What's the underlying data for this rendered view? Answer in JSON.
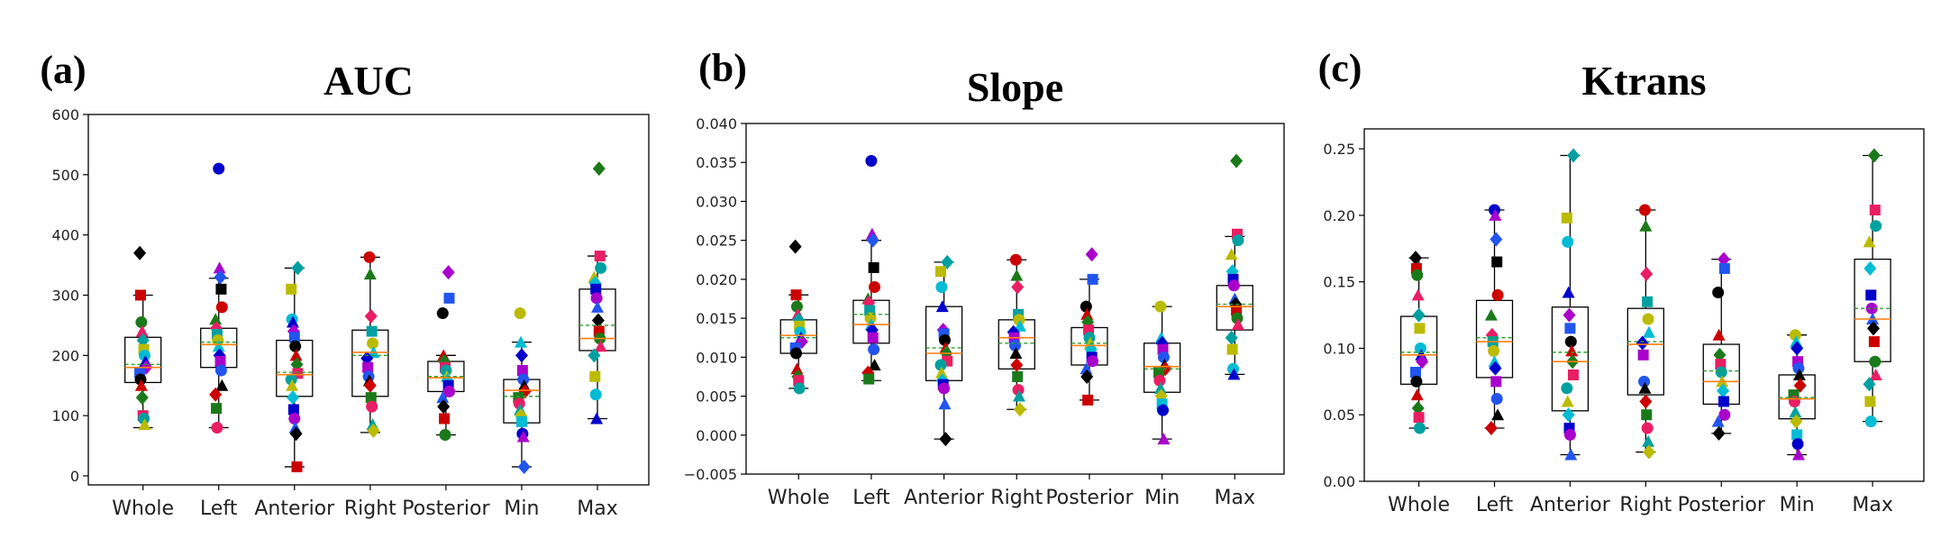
{
  "chart_data": [
    {
      "type": "box",
      "panel": "(a)",
      "title": "AUC",
      "xlabel": "",
      "ylabel": "",
      "categories": [
        "Whole",
        "Left",
        "Anterior",
        "Right",
        "Posterior",
        "Min",
        "Max"
      ],
      "ylim": [
        -15,
        600
      ],
      "yticks": [
        0,
        100,
        200,
        300,
        400,
        500,
        600
      ],
      "ytick_labels": [
        "0",
        "100",
        "200",
        "300",
        "400",
        "500",
        "600"
      ],
      "boxes": [
        {
          "whisker_low": 80,
          "q1": 155,
          "median": 180,
          "mean": 185,
          "q3": 230,
          "whisker_high": 300
        },
        {
          "whisker_low": 80,
          "q1": 180,
          "median": 218,
          "mean": 222,
          "q3": 245,
          "whisker_high": 328
        },
        {
          "whisker_low": 15,
          "q1": 132,
          "median": 168,
          "mean": 172,
          "q3": 225,
          "whisker_high": 345
        },
        {
          "whisker_low": 72,
          "q1": 132,
          "median": 205,
          "mean": 200,
          "q3": 242,
          "whisker_high": 363
        },
        {
          "whisker_low": 68,
          "q1": 140,
          "median": 163,
          "mean": 165,
          "q3": 190,
          "whisker_high": 200
        },
        {
          "whisker_low": 15,
          "q1": 88,
          "median": 142,
          "mean": 132,
          "q3": 160,
          "whisker_high": 222
        },
        {
          "whisker_low": 95,
          "q1": 208,
          "median": 228,
          "mean": 250,
          "q3": 310,
          "whisker_high": 365
        }
      ],
      "points": [
        [
          370,
          300,
          255,
          240,
          225,
          210,
          200,
          190,
          180,
          172,
          160,
          150,
          130,
          100,
          95,
          85
        ],
        [
          510,
          345,
          330,
          310,
          280,
          260,
          245,
          235,
          225,
          215,
          200,
          190,
          175,
          150,
          135,
          112,
          80
        ],
        [
          345,
          310,
          260,
          255,
          240,
          230,
          215,
          200,
          185,
          170,
          160,
          150,
          130,
          110,
          95,
          80,
          70,
          15
        ],
        [
          363,
          335,
          265,
          240,
          220,
          205,
          195,
          180,
          165,
          158,
          150,
          130,
          115,
          85,
          75
        ],
        [
          338,
          295,
          270,
          200,
          190,
          180,
          175,
          165,
          158,
          150,
          140,
          130,
          115,
          95,
          68
        ],
        [
          270,
          222,
          200,
          175,
          160,
          150,
          140,
          130,
          120,
          110,
          100,
          90,
          70,
          65,
          15
        ],
        [
          510,
          365,
          345,
          330,
          320,
          310,
          295,
          280,
          258,
          240,
          228,
          215,
          200,
          165,
          135,
          95
        ]
      ]
    },
    {
      "type": "box",
      "panel": "(b)",
      "title": "Slope",
      "xlabel": "",
      "ylabel": "",
      "categories": [
        "Whole",
        "Left",
        "Anterior",
        "Right",
        "Posterior",
        "Min",
        "Max"
      ],
      "ylim": [
        -0.005,
        0.04
      ],
      "yticks": [
        -0.005,
        0.0,
        0.005,
        0.01,
        0.015,
        0.02,
        0.025,
        0.03,
        0.035,
        0.04
      ],
      "ytick_labels": [
        "−0.005",
        "0.000",
        "0.005",
        "0.010",
        "0.015",
        "0.020",
        "0.025",
        "0.030",
        "0.035",
        "0.040"
      ],
      "boxes": [
        {
          "whisker_low": 0.006,
          "q1": 0.0105,
          "median": 0.0128,
          "mean": 0.0125,
          "q3": 0.0148,
          "whisker_high": 0.018
        },
        {
          "whisker_low": 0.007,
          "q1": 0.0118,
          "median": 0.0142,
          "mean": 0.0155,
          "q3": 0.0173,
          "whisker_high": 0.025
        },
        {
          "whisker_low": -0.0005,
          "q1": 0.007,
          "median": 0.0105,
          "mean": 0.0112,
          "q3": 0.0165,
          "whisker_high": 0.0222
        },
        {
          "whisker_low": 0.0033,
          "q1": 0.0085,
          "median": 0.0125,
          "mean": 0.0118,
          "q3": 0.0148,
          "whisker_high": 0.0225
        },
        {
          "whisker_low": 0.0045,
          "q1": 0.009,
          "median": 0.0115,
          "mean": 0.0118,
          "q3": 0.0138,
          "whisker_high": 0.02
        },
        {
          "whisker_low": -0.0005,
          "q1": 0.0055,
          "median": 0.0088,
          "mean": 0.0085,
          "q3": 0.0118,
          "whisker_high": 0.0165
        },
        {
          "whisker_low": 0.0078,
          "q1": 0.0135,
          "median": 0.0165,
          "mean": 0.0168,
          "q3": 0.0192,
          "whisker_high": 0.0255
        }
      ],
      "points": [
        [
          0.0242,
          0.018,
          0.0165,
          0.0155,
          0.0148,
          0.014,
          0.0132,
          0.0125,
          0.012,
          0.0112,
          0.0105,
          0.0085,
          0.0075,
          0.007,
          0.006
        ],
        [
          0.0352,
          0.0258,
          0.025,
          0.0215,
          0.019,
          0.0175,
          0.017,
          0.016,
          0.015,
          0.0142,
          0.0135,
          0.0125,
          0.011,
          0.009,
          0.008,
          0.0072
        ],
        [
          0.0222,
          0.021,
          0.019,
          0.0165,
          0.0135,
          0.013,
          0.0122,
          0.0112,
          0.0105,
          0.0095,
          0.009,
          0.008,
          0.007,
          0.0065,
          0.006,
          0.004,
          -0.0005
        ],
        [
          0.0225,
          0.0205,
          0.019,
          0.0155,
          0.0148,
          0.014,
          0.0132,
          0.0125,
          0.0115,
          0.0105,
          0.009,
          0.0075,
          0.0058,
          0.005,
          0.0033
        ],
        [
          0.0232,
          0.02,
          0.0165,
          0.0155,
          0.0145,
          0.0135,
          0.0125,
          0.0118,
          0.011,
          0.01,
          0.0095,
          0.0085,
          0.0075,
          0.0045
        ],
        [
          0.0165,
          0.0125,
          0.0118,
          0.011,
          0.01,
          0.009,
          0.0085,
          0.008,
          0.007,
          0.006,
          0.005,
          0.004,
          0.0032,
          -0.0005
        ],
        [
          0.0352,
          0.0258,
          0.025,
          0.0232,
          0.021,
          0.02,
          0.0192,
          0.0175,
          0.0168,
          0.016,
          0.015,
          0.0142,
          0.0125,
          0.011,
          0.0085,
          0.0078
        ]
      ]
    },
    {
      "type": "box",
      "panel": "(c)",
      "title": "Ktrans",
      "xlabel": "",
      "ylabel": "",
      "categories": [
        "Whole",
        "Left",
        "Anterior",
        "Right",
        "Posterior",
        "Min",
        "Max"
      ],
      "ylim": [
        0.0,
        0.265
      ],
      "yticks": [
        0.0,
        0.05,
        0.1,
        0.15,
        0.2,
        0.25
      ],
      "ytick_labels": [
        "0.00",
        "0.05",
        "0.10",
        "0.15",
        "0.20",
        "0.25"
      ],
      "boxes": [
        {
          "whisker_low": 0.04,
          "q1": 0.073,
          "median": 0.095,
          "mean": 0.097,
          "q3": 0.124,
          "whisker_high": 0.168
        },
        {
          "whisker_low": 0.04,
          "q1": 0.078,
          "median": 0.105,
          "mean": 0.108,
          "q3": 0.136,
          "whisker_high": 0.204
        },
        {
          "whisker_low": 0.02,
          "q1": 0.053,
          "median": 0.09,
          "mean": 0.097,
          "q3": 0.131,
          "whisker_high": 0.245
        },
        {
          "whisker_low": 0.022,
          "q1": 0.065,
          "median": 0.103,
          "mean": 0.105,
          "q3": 0.13,
          "whisker_high": 0.204
        },
        {
          "whisker_low": 0.036,
          "q1": 0.058,
          "median": 0.075,
          "mean": 0.083,
          "q3": 0.103,
          "whisker_high": 0.167
        },
        {
          "whisker_low": 0.02,
          "q1": 0.047,
          "median": 0.062,
          "mean": 0.063,
          "q3": 0.08,
          "whisker_high": 0.11
        },
        {
          "whisker_low": 0.045,
          "q1": 0.09,
          "median": 0.122,
          "mean": 0.13,
          "q3": 0.167,
          "whisker_high": 0.245
        }
      ],
      "points": [
        [
          0.168,
          0.16,
          0.155,
          0.14,
          0.125,
          0.115,
          0.1,
          0.095,
          0.09,
          0.082,
          0.075,
          0.065,
          0.055,
          0.048,
          0.04
        ],
        [
          0.204,
          0.2,
          0.182,
          0.165,
          0.14,
          0.125,
          0.11,
          0.105,
          0.098,
          0.09,
          0.085,
          0.075,
          0.062,
          0.05,
          0.04
        ],
        [
          0.245,
          0.198,
          0.18,
          0.142,
          0.125,
          0.115,
          0.105,
          0.098,
          0.09,
          0.08,
          0.07,
          0.06,
          0.05,
          0.04,
          0.035,
          0.02
        ],
        [
          0.204,
          0.192,
          0.156,
          0.135,
          0.122,
          0.112,
          0.104,
          0.095,
          0.075,
          0.07,
          0.06,
          0.05,
          0.04,
          0.03,
          0.022
        ],
        [
          0.167,
          0.16,
          0.142,
          0.11,
          0.095,
          0.088,
          0.082,
          0.075,
          0.068,
          0.06,
          0.05,
          0.045,
          0.036
        ],
        [
          0.11,
          0.105,
          0.1,
          0.09,
          0.085,
          0.08,
          0.072,
          0.065,
          0.06,
          0.052,
          0.045,
          0.035,
          0.028,
          0.02
        ],
        [
          0.245,
          0.204,
          0.192,
          0.18,
          0.16,
          0.14,
          0.13,
          0.122,
          0.115,
          0.105,
          0.09,
          0.08,
          0.073,
          0.06,
          0.045
        ]
      ]
    }
  ],
  "marker_colors": [
    "#000000",
    "#0000cc",
    "#00a0a0",
    "#cc0000",
    "#aa00cc",
    "#bbbb00",
    "#1a7a1a",
    "#2255ee",
    "#00bcd4",
    "#e91e63"
  ],
  "marker_shapes": [
    "diamond",
    "square",
    "circle",
    "triangle"
  ],
  "box_style": {
    "median_color": "#ff7f0e",
    "mean_color": "#2ca02c",
    "box_color": "#000000"
  }
}
